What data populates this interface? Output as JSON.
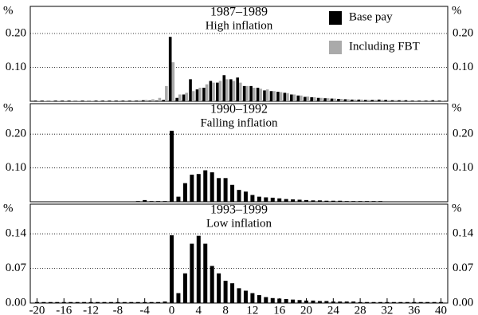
{
  "chart_data": [
    {
      "type": "bar",
      "title": "1987–1989",
      "subtitle": "High inflation",
      "y_unit": "%",
      "grid": true,
      "legend": "upper right",
      "x": [
        -20,
        -19,
        -18,
        -17,
        -16,
        -15,
        -14,
        -13,
        -12,
        -11,
        -10,
        -9,
        -8,
        -7,
        -6,
        -5,
        -4,
        -3,
        -2,
        -1,
        0,
        1,
        2,
        3,
        4,
        5,
        6,
        7,
        8,
        9,
        10,
        11,
        12,
        13,
        14,
        15,
        16,
        17,
        18,
        19,
        20,
        21,
        22,
        23,
        24,
        25,
        26,
        27,
        28,
        29,
        30,
        31,
        32,
        33,
        34,
        35,
        36,
        37,
        38,
        39,
        40
      ],
      "xlim": [
        -21,
        41
      ],
      "ylim": [
        0,
        0.28
      ],
      "yticks": [
        {
          "value": 0.1,
          "label": "0.10"
        },
        {
          "value": 0.2,
          "label": "0.20"
        }
      ],
      "series": [
        {
          "name": "Base pay",
          "color": "#000000",
          "values": [
            0.002,
            0.002,
            0.001,
            0.002,
            0.002,
            0.002,
            0.001,
            0.002,
            0.001,
            0.002,
            0.002,
            0.002,
            0.002,
            0.002,
            0.002,
            0.002,
            0.003,
            0.002,
            0.002,
            0.004,
            0.19,
            0.01,
            0.02,
            0.065,
            0.035,
            0.04,
            0.06,
            0.055,
            0.077,
            0.065,
            0.07,
            0.045,
            0.045,
            0.04,
            0.032,
            0.03,
            0.028,
            0.025,
            0.02,
            0.017,
            0.013,
            0.012,
            0.01,
            0.009,
            0.008,
            0.007,
            0.006,
            0.005,
            0.005,
            0.004,
            0.004,
            0.005,
            0.004,
            0.003,
            0.003,
            0.003,
            0.002,
            0.002,
            0.002,
            0.003,
            0.002
          ]
        },
        {
          "name": "Including FBT",
          "color": "#aaaaaa",
          "values": [
            0.001,
            0.001,
            0.001,
            0.001,
            0.001,
            0.001,
            0.001,
            0.001,
            0.001,
            0.001,
            0.001,
            0.001,
            0.002,
            0.002,
            0.002,
            0.003,
            0.004,
            0.006,
            0.01,
            0.045,
            0.115,
            0.02,
            0.025,
            0.03,
            0.04,
            0.05,
            0.055,
            0.06,
            0.065,
            0.06,
            0.055,
            0.045,
            0.04,
            0.037,
            0.035,
            0.03,
            0.027,
            0.024,
            0.02,
            0.017,
            0.014,
            0.012,
            0.01,
            0.009,
            0.008,
            0.007,
            0.006,
            0.005,
            0.005,
            0.004,
            0.004,
            0.004,
            0.003,
            0.003,
            0.003,
            0.002,
            0.002,
            0.002,
            0.002,
            0.002,
            0.002
          ]
        }
      ]
    },
    {
      "type": "bar",
      "title": "1990–1992",
      "subtitle": "Falling inflation",
      "y_unit": "%",
      "grid": true,
      "x": [
        -20,
        -19,
        -18,
        -17,
        -16,
        -15,
        -14,
        -13,
        -12,
        -11,
        -10,
        -9,
        -8,
        -7,
        -6,
        -5,
        -4,
        -3,
        -2,
        -1,
        0,
        1,
        2,
        3,
        4,
        5,
        6,
        7,
        8,
        9,
        10,
        11,
        12,
        13,
        14,
        15,
        16,
        17,
        18,
        19,
        20,
        21,
        22,
        23,
        24,
        25,
        26,
        27,
        28,
        29,
        30,
        31,
        32,
        33,
        34,
        35,
        36,
        37,
        38,
        39,
        40
      ],
      "xlim": [
        -21,
        41
      ],
      "ylim": [
        0,
        0.29
      ],
      "yticks": [
        {
          "value": 0.1,
          "label": "0.10"
        },
        {
          "value": 0.2,
          "label": "0.20"
        }
      ],
      "series": [
        {
          "name": "Base pay",
          "color": "#000000",
          "values": [
            0.001,
            0.001,
            0.001,
            0.001,
            0.001,
            0.001,
            0.001,
            0.001,
            0.001,
            0.001,
            0.001,
            0.001,
            0.001,
            0.001,
            0.001,
            0.002,
            0.005,
            0.002,
            0.002,
            0.002,
            0.21,
            0.015,
            0.055,
            0.08,
            0.082,
            0.093,
            0.087,
            0.07,
            0.07,
            0.05,
            0.035,
            0.03,
            0.02,
            0.015,
            0.013,
            0.012,
            0.01,
            0.008,
            0.007,
            0.006,
            0.005,
            0.004,
            0.004,
            0.003,
            0.003,
            0.003,
            0.002,
            0.002,
            0.002,
            0.002,
            0.002,
            0.002,
            0.001,
            0.001,
            0.001,
            0.001,
            0.001,
            0.001,
            0.001,
            0.001,
            0.001
          ]
        }
      ]
    },
    {
      "type": "bar",
      "title": "1993–1999",
      "subtitle": "Low inflation",
      "y_unit": "%",
      "grid": true,
      "x": [
        -20,
        -19,
        -18,
        -17,
        -16,
        -15,
        -14,
        -13,
        -12,
        -11,
        -10,
        -9,
        -8,
        -7,
        -6,
        -5,
        -4,
        -3,
        -2,
        -1,
        0,
        1,
        2,
        3,
        4,
        5,
        6,
        7,
        8,
        9,
        10,
        11,
        12,
        13,
        14,
        15,
        16,
        17,
        18,
        19,
        20,
        21,
        22,
        23,
        24,
        25,
        26,
        27,
        28,
        29,
        30,
        31,
        32,
        33,
        34,
        35,
        36,
        37,
        38,
        39,
        40
      ],
      "xlim": [
        -21,
        41
      ],
      "ylim": [
        0,
        0.2
      ],
      "xticks": [
        -20,
        -16,
        -12,
        -8,
        -4,
        0,
        4,
        8,
        12,
        16,
        20,
        24,
        28,
        32,
        36,
        40
      ],
      "yticks": [
        {
          "value": 0,
          "label": "0.00"
        },
        {
          "value": 0.07,
          "label": "0.07"
        },
        {
          "value": 0.14,
          "label": "0.14"
        }
      ],
      "series": [
        {
          "name": "Base pay",
          "color": "#000000",
          "values": [
            0.002,
            0.002,
            0.002,
            0.002,
            0.002,
            0.002,
            0.002,
            0.002,
            0.002,
            0.002,
            0.002,
            0.002,
            0.002,
            0.002,
            0.002,
            0.002,
            0.002,
            0.002,
            0.002,
            0.003,
            0.137,
            0.02,
            0.06,
            0.12,
            0.136,
            0.12,
            0.075,
            0.06,
            0.045,
            0.04,
            0.03,
            0.025,
            0.02,
            0.016,
            0.012,
            0.01,
            0.009,
            0.008,
            0.007,
            0.006,
            0.005,
            0.005,
            0.004,
            0.004,
            0.003,
            0.003,
            0.003,
            0.003,
            0.002,
            0.002,
            0.002,
            0.002,
            0.002,
            0.002,
            0.002,
            0.002,
            0.002,
            0.002,
            0.002,
            0.002,
            0.002
          ]
        }
      ]
    }
  ]
}
